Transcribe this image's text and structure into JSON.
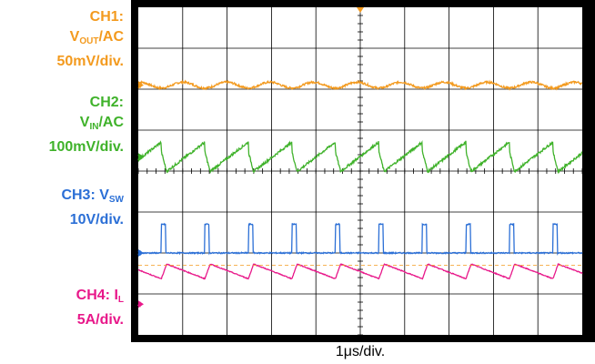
{
  "chart_data": {
    "type": "line",
    "title": "",
    "time_scale": "1µs/div.",
    "grid": true,
    "divisions": {
      "x": 10,
      "y": 8
    },
    "channels": [
      {
        "id": "CH1",
        "label_main": "V",
        "label_sub": "OUT",
        "label_suffix": "/AC",
        "scale": "50mV/div.",
        "color": "#f39a1e",
        "coupling": "AC",
        "marker": "1",
        "ground_div": 6.1
      },
      {
        "id": "CH2",
        "label_main": "V",
        "label_sub": "IN",
        "label_suffix": "/AC",
        "scale": "100mV/div.",
        "color": "#3fb22a",
        "coupling": "AC",
        "marker": "2",
        "ground_div": 4.35
      },
      {
        "id": "CH3",
        "label_main": "CH3: V",
        "label_sub": "SW",
        "label_suffix": "",
        "scale": "10V/div.",
        "color": "#2b6fd6",
        "coupling": "DC",
        "marker": "3",
        "ground_div": 2.0
      },
      {
        "id": "CH4",
        "label_main": "CH4: I",
        "label_sub": "L",
        "label_suffix": "",
        "scale": "5A/div.",
        "color": "#e8188a",
        "coupling": "DC",
        "marker": "4",
        "ground_div": 0.75
      }
    ],
    "switching": {
      "period_div": 0.98,
      "first_edge_div": 0.52,
      "pulse_width_div": 0.1,
      "vsw_high_div": 0.7,
      "il_ripple_div": 0.18,
      "vin_ripple_div": 0.3,
      "vout_ripple_div": 0.08
    }
  },
  "labels": {
    "ch1_title": "CH1:",
    "ch1_v": "V",
    "ch1_sub": "OUT",
    "ch1_suffix": "/AC",
    "ch1_scale": "50mV/div.",
    "ch2_title": "CH2:",
    "ch2_v": "V",
    "ch2_sub": "IN",
    "ch2_suffix": "/AC",
    "ch2_scale": "100mV/div.",
    "ch3_title": "CH3: V",
    "ch3_sub": "SW",
    "ch3_scale": "10V/div.",
    "ch4_title": "CH4: I",
    "ch4_sub": "L",
    "ch4_scale": "5A/div."
  },
  "time_label": "1μs/div."
}
